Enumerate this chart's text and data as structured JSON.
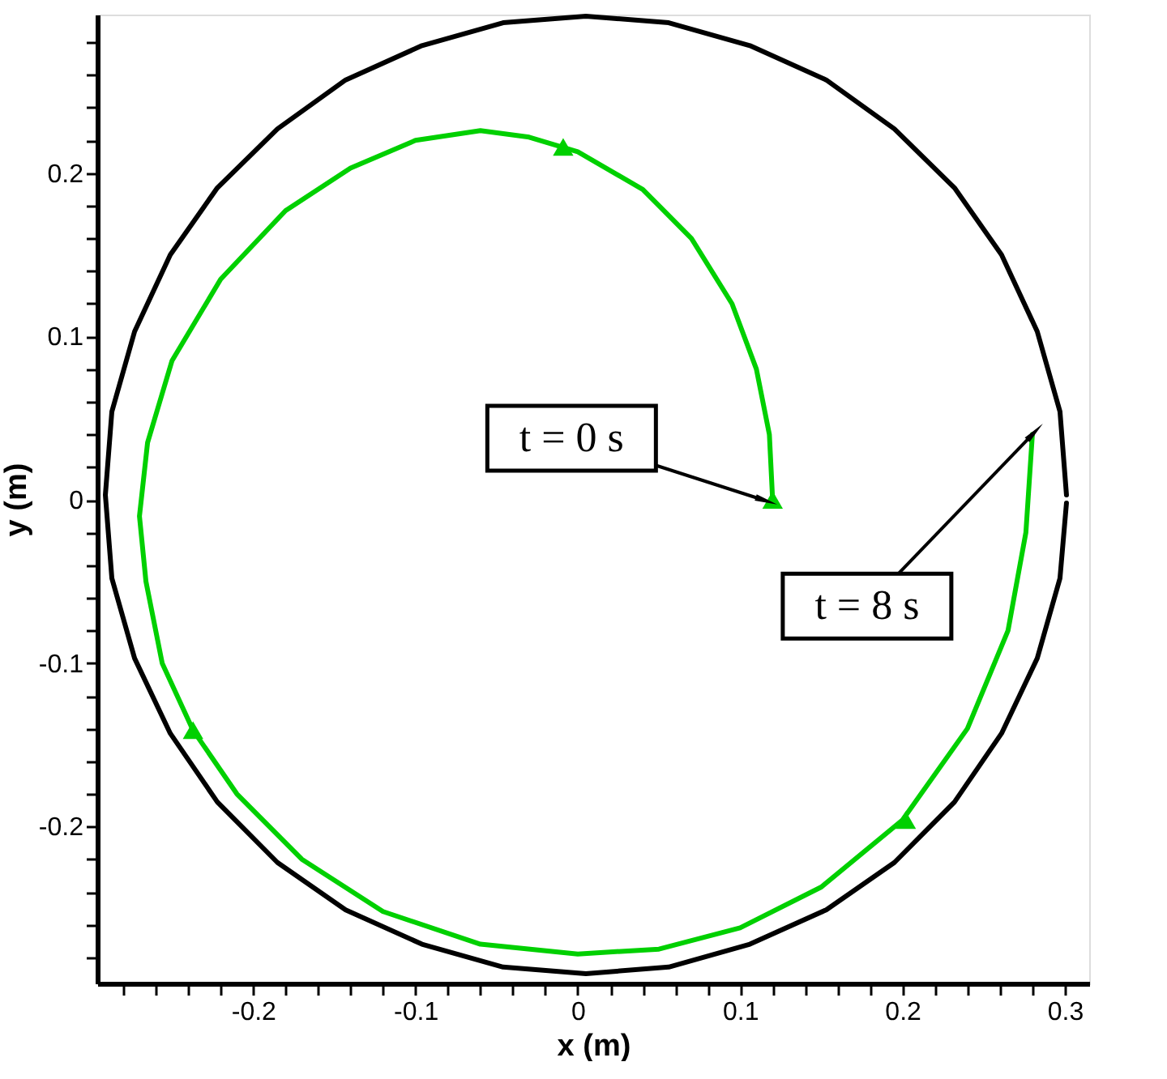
{
  "chart_data": {
    "type": "line",
    "xlabel": "x (m)",
    "ylabel": "y (m)",
    "xlim": [
      -0.296,
      0.315
    ],
    "ylim": [
      -0.296,
      0.297
    ],
    "xticks": [
      {
        "value": -0.28,
        "label": null
      },
      {
        "value": -0.26,
        "label": null
      },
      {
        "value": -0.24,
        "label": null
      },
      {
        "value": -0.22,
        "label": null
      },
      -0.2,
      {
        "value": -0.18,
        "label": null
      },
      {
        "value": -0.16,
        "label": null
      },
      {
        "value": -0.14,
        "label": null
      },
      {
        "value": -0.12,
        "label": null
      },
      -0.1,
      {
        "value": -0.08,
        "label": null
      },
      {
        "value": -0.06,
        "label": null
      },
      {
        "value": -0.04,
        "label": null
      },
      {
        "value": -0.02,
        "label": null
      },
      0,
      {
        "value": 0.02,
        "label": null
      },
      {
        "value": 0.04,
        "label": null
      },
      {
        "value": 0.06,
        "label": null
      },
      {
        "value": 0.08,
        "label": null
      },
      0.1,
      {
        "value": 0.12,
        "label": null
      },
      {
        "value": 0.14,
        "label": null
      },
      {
        "value": 0.16,
        "label": null
      },
      {
        "value": 0.18,
        "label": null
      },
      0.2,
      {
        "value": 0.22,
        "label": null
      },
      {
        "value": 0.24,
        "label": null
      },
      {
        "value": 0.26,
        "label": null
      },
      {
        "value": 0.28,
        "label": null
      },
      0.3
    ],
    "yticks": [
      {
        "value": -0.28,
        "label": null
      },
      {
        "value": -0.26,
        "label": null
      },
      {
        "value": -0.24,
        "label": null
      },
      {
        "value": -0.22,
        "label": null
      },
      -0.2,
      {
        "value": -0.18,
        "label": null
      },
      {
        "value": -0.16,
        "label": null
      },
      {
        "value": -0.14,
        "label": null
      },
      {
        "value": -0.12,
        "label": null
      },
      -0.1,
      {
        "value": -0.08,
        "label": null
      },
      {
        "value": -0.06,
        "label": null
      },
      {
        "value": -0.04,
        "label": null
      },
      {
        "value": -0.02,
        "label": null
      },
      0,
      {
        "value": 0.02,
        "label": null
      },
      {
        "value": 0.04,
        "label": null
      },
      {
        "value": 0.06,
        "label": null
      },
      {
        "value": 0.08,
        "label": null
      },
      0.1,
      {
        "value": 0.12,
        "label": null
      },
      {
        "value": 0.14,
        "label": null
      },
      {
        "value": 0.16,
        "label": null
      },
      {
        "value": 0.18,
        "label": null
      },
      0.2,
      {
        "value": 0.22,
        "label": null
      },
      {
        "value": 0.24,
        "label": null
      },
      {
        "value": 0.26,
        "label": null
      },
      {
        "value": 0.28,
        "label": null
      }
    ],
    "grid": false,
    "series": [
      {
        "type": "line",
        "color": "#000000",
        "x": [
          0.301,
          0.297,
          0.283,
          0.261,
          0.232,
          0.195,
          0.153,
          0.106,
          0.056,
          0.005,
          -0.046,
          -0.096,
          -0.143,
          -0.185,
          -0.222,
          -0.251,
          -0.273,
          -0.287,
          -0.291,
          -0.287,
          -0.273,
          -0.251,
          -0.222,
          -0.185,
          -0.143,
          -0.096,
          -0.046,
          0.005,
          0.056,
          0.106,
          0.153,
          0.195,
          0.232,
          0.261,
          0.283,
          0.297,
          0.301
        ],
        "values": [
          0.003,
          0.054,
          0.103,
          0.15,
          0.191,
          0.227,
          0.257,
          0.278,
          0.292,
          0.296,
          0.292,
          0.278,
          0.257,
          0.227,
          0.191,
          0.15,
          0.103,
          0.054,
          0.003,
          -0.048,
          -0.097,
          -0.143,
          -0.185,
          -0.222,
          -0.251,
          -0.272,
          -0.286,
          -0.29,
          -0.286,
          -0.272,
          -0.251,
          -0.222,
          -0.185,
          -0.143,
          -0.097,
          -0.048,
          -0.002
        ]
      },
      {
        "type": "line",
        "color": "#00d000",
        "x": [
          0.12,
          0.118,
          0.11,
          0.095,
          0.07,
          0.04,
          0.0,
          -0.03,
          -0.06,
          -0.1,
          -0.14,
          -0.18,
          -0.22,
          -0.25,
          -0.265,
          -0.27,
          -0.266,
          -0.256,
          -0.237,
          -0.21,
          -0.17,
          -0.12,
          -0.06,
          0.0,
          0.05,
          0.1,
          0.15,
          0.2,
          0.24,
          0.265,
          0.276,
          0.28
        ],
        "values": [
          0,
          0.04,
          0.08,
          0.12,
          0.16,
          0.19,
          0.213,
          0.222,
          0.226,
          0.22,
          0.203,
          0.177,
          0.135,
          0.085,
          0.035,
          -0.01,
          -0.05,
          -0.1,
          -0.141,
          -0.18,
          -0.22,
          -0.252,
          -0.272,
          -0.278,
          -0.275,
          -0.262,
          -0.237,
          -0.196,
          -0.14,
          -0.08,
          -0.02,
          0.04
        ]
      },
      {
        "type": "scatter",
        "marker": "triangle",
        "color": "#00d000",
        "x": [
          0.12,
          -0.009,
          -0.237,
          0.202
        ],
        "values": [
          0.0,
          0.216,
          -0.141,
          -0.196
        ]
      }
    ],
    "annotations": [
      {
        "text": "t = 0 s",
        "x": 0.114,
        "y": 0.0
      },
      {
        "text": "t = 8 s",
        "x": 0.28,
        "y": 0.04
      }
    ]
  }
}
